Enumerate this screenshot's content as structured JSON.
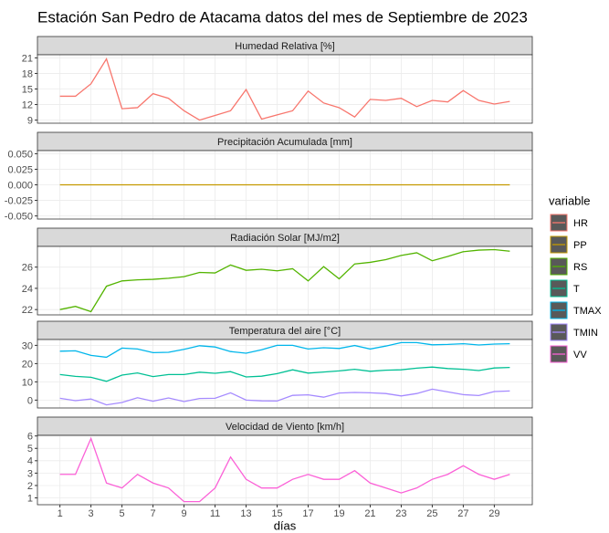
{
  "chart_data": {
    "type": "line",
    "title": "Estación San Pedro de Atacama datos del mes de Septiembre de 2023",
    "xlabel": "días",
    "legend_title": "variable",
    "grid": true,
    "x": [
      1,
      2,
      3,
      4,
      5,
      6,
      7,
      8,
      9,
      10,
      11,
      12,
      13,
      14,
      15,
      16,
      17,
      18,
      19,
      20,
      21,
      22,
      23,
      24,
      25,
      26,
      27,
      28,
      29,
      30
    ],
    "xlim": [
      -0.45,
      31.45
    ],
    "xticks": [
      1,
      3,
      5,
      7,
      9,
      11,
      13,
      15,
      17,
      19,
      21,
      23,
      25,
      27,
      29
    ],
    "panels": [
      {
        "title": "Humedad Relativa [%]",
        "ylim": [
          8.4,
          21.6
        ],
        "yticks": [
          9,
          12,
          15,
          18,
          21
        ],
        "series": [
          {
            "name": "HR",
            "color": "#F8766D",
            "values": [
              13.6,
              13.6,
              16,
              20.8,
              11.2,
              11.4,
              14.1,
              13.2,
              10.8,
              9,
              9.9,
              10.8,
              14.9,
              9.2,
              10,
              10.8,
              14.6,
              12.3,
              11.4,
              9.6,
              13,
              12.8,
              13.2,
              11.6,
              12.8,
              12.5,
              14.7,
              12.8,
              12.1,
              12.6
            ]
          }
        ]
      },
      {
        "title": "Precipitación Acumulada [mm]",
        "ylim": [
          -0.055,
          0.055
        ],
        "yticks": [
          {
            "value": -0.05,
            "label": "-0.050"
          },
          {
            "value": -0.025,
            "label": "-0.025"
          },
          {
            "value": 0,
            "label": "0.000"
          },
          {
            "value": 0.025,
            "label": "0.025"
          },
          {
            "value": 0.05,
            "label": "0.050"
          }
        ],
        "series": [
          {
            "name": "PP",
            "color": "#C49A00",
            "values": [
              0,
              0,
              0,
              0,
              0,
              0,
              0,
              0,
              0,
              0,
              0,
              0,
              0,
              0,
              0,
              0,
              0,
              0,
              0,
              0,
              0,
              0,
              0,
              0,
              0,
              0,
              0,
              0,
              0,
              0
            ]
          }
        ]
      },
      {
        "title": "Radiación Solar [MJ/m2]",
        "ylim": [
          21.5,
          27.95
        ],
        "yticks": [
          22,
          24,
          26
        ],
        "series": [
          {
            "name": "RS",
            "color": "#53B400",
            "values": [
              22.0,
              22.3,
              21.8,
              24.2,
              24.7,
              24.8,
              24.85,
              24.95,
              25.1,
              25.5,
              25.45,
              26.2,
              25.7,
              25.8,
              25.65,
              25.85,
              24.7,
              26.05,
              24.9,
              26.3,
              26.45,
              26.7,
              27.1,
              27.35,
              26.6,
              27.0,
              27.45,
              27.6,
              27.65,
              27.5
            ]
          }
        ]
      },
      {
        "title": "Temperatura del aire [°C]",
        "ylim": [
          -4.3,
          33.2
        ],
        "yticks": [
          0,
          10,
          20,
          30
        ],
        "series": [
          {
            "name": "T",
            "color": "#00C094",
            "values": [
              14,
              13,
              12.5,
              10.3,
              13.7,
              14.9,
              12.9,
              14,
              14,
              15.3,
              14.7,
              15.6,
              12.7,
              13.1,
              14.5,
              16.6,
              14.8,
              15.4,
              16,
              16.9,
              15.8,
              16.4,
              16.6,
              17.5,
              18.1,
              17.3,
              16.9,
              16.2,
              17.6,
              17.9
            ]
          },
          {
            "name": "TMAX",
            "color": "#00B6EB",
            "values": [
              26.8,
              27,
              24.5,
              23.5,
              28.5,
              28,
              26,
              26.2,
              27.8,
              29.8,
              29.1,
              26.6,
              25.7,
              27.6,
              30,
              30,
              28,
              28.7,
              28.3,
              29.9,
              28,
              29.6,
              31.5,
              31.5,
              30.3,
              30.5,
              30.9,
              30.2,
              30.7,
              30.9
            ]
          },
          {
            "name": "TMIN",
            "color": "#A58AFF",
            "values": [
              1,
              -0.3,
              0.6,
              -2.6,
              -1.3,
              1.3,
              -0.6,
              1.2,
              -0.8,
              0.9,
              1,
              4,
              0,
              -0.4,
              -0.5,
              2.6,
              2.9,
              1.6,
              3.9,
              4.2,
              4,
              3.6,
              2.3,
              3.6,
              6,
              4.5,
              3,
              2.5,
              4.7,
              5
            ]
          }
        ]
      },
      {
        "title": "Velocidad de Viento [km/h]",
        "ylim": [
          0.45,
          6.05
        ],
        "yticks": [
          1,
          2,
          3,
          4,
          5,
          6
        ],
        "series": [
          {
            "name": "VV",
            "color": "#FB61D7",
            "values": [
              2.9,
              2.9,
              5.8,
              2.2,
              1.8,
              2.9,
              2.2,
              1.8,
              0.7,
              0.7,
              1.8,
              4.3,
              2.5,
              1.8,
              1.8,
              2.5,
              2.9,
              2.5,
              2.5,
              3.2,
              2.2,
              1.8,
              1.4,
              1.8,
              2.5,
              2.9,
              3.6,
              2.9,
              2.5,
              2.9
            ]
          }
        ]
      }
    ]
  }
}
